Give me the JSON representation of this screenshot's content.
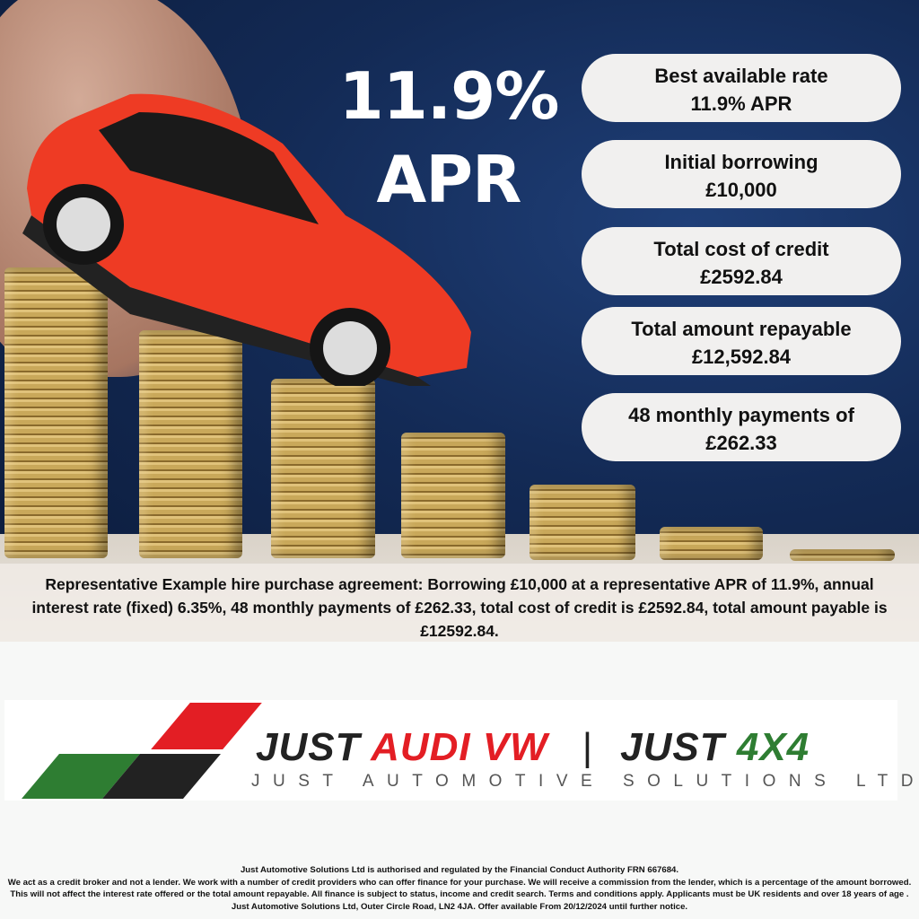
{
  "headline": {
    "rate": "11.9%",
    "label": "APR"
  },
  "pills": [
    {
      "title": "Best available rate",
      "value": "11.9% APR"
    },
    {
      "title": "Initial borrowing",
      "value": "£10,000"
    },
    {
      "title": "Total cost of credit",
      "value": "£2592.84"
    },
    {
      "title": "Total amount repayable",
      "value": "£12,592.84"
    },
    {
      "title": "48 monthly payments of",
      "value": "£262.33"
    }
  ],
  "representative_example": "Representative Example hire purchase agreement: Borrowing £10,000 at a representative APR of 11.9%, annual interest rate (fixed) 6.35%, 48 monthly payments of £262.33, total cost of credit is £2592.84, total amount payable is £12592.84.",
  "logo": {
    "just1": "JUST ",
    "audi": "AUDI VW",
    "sep": "|",
    "just2": "JUST ",
    "x4": "4X4",
    "subtitle": "JUST AUTOMOTIVE SOLUTIONS LTD",
    "colors": {
      "red": "#e31e24",
      "green": "#2e7d32",
      "black": "#222222"
    }
  },
  "fine_print": {
    "line1": "Just Automotive Solutions Ltd is authorised and regulated by the Financial Conduct Authority FRN 667684.",
    "line2": "We act as a credit broker and not a lender. We work with a number of credit providers who can offer finance for your purchase. We will receive a commission from the lender, which is a percentage of the amount borrowed. This will not affect the interest rate offered or the total amount repayable. All finance is subject to status, income and credit search. Terms and conditions apply. Applicants must be UK residents and over 18 years of age . Just Automotive Solutions Ltd, Outer Circle Road, LN2 4JA. Offer available From 20/12/2024 until further notice."
  }
}
